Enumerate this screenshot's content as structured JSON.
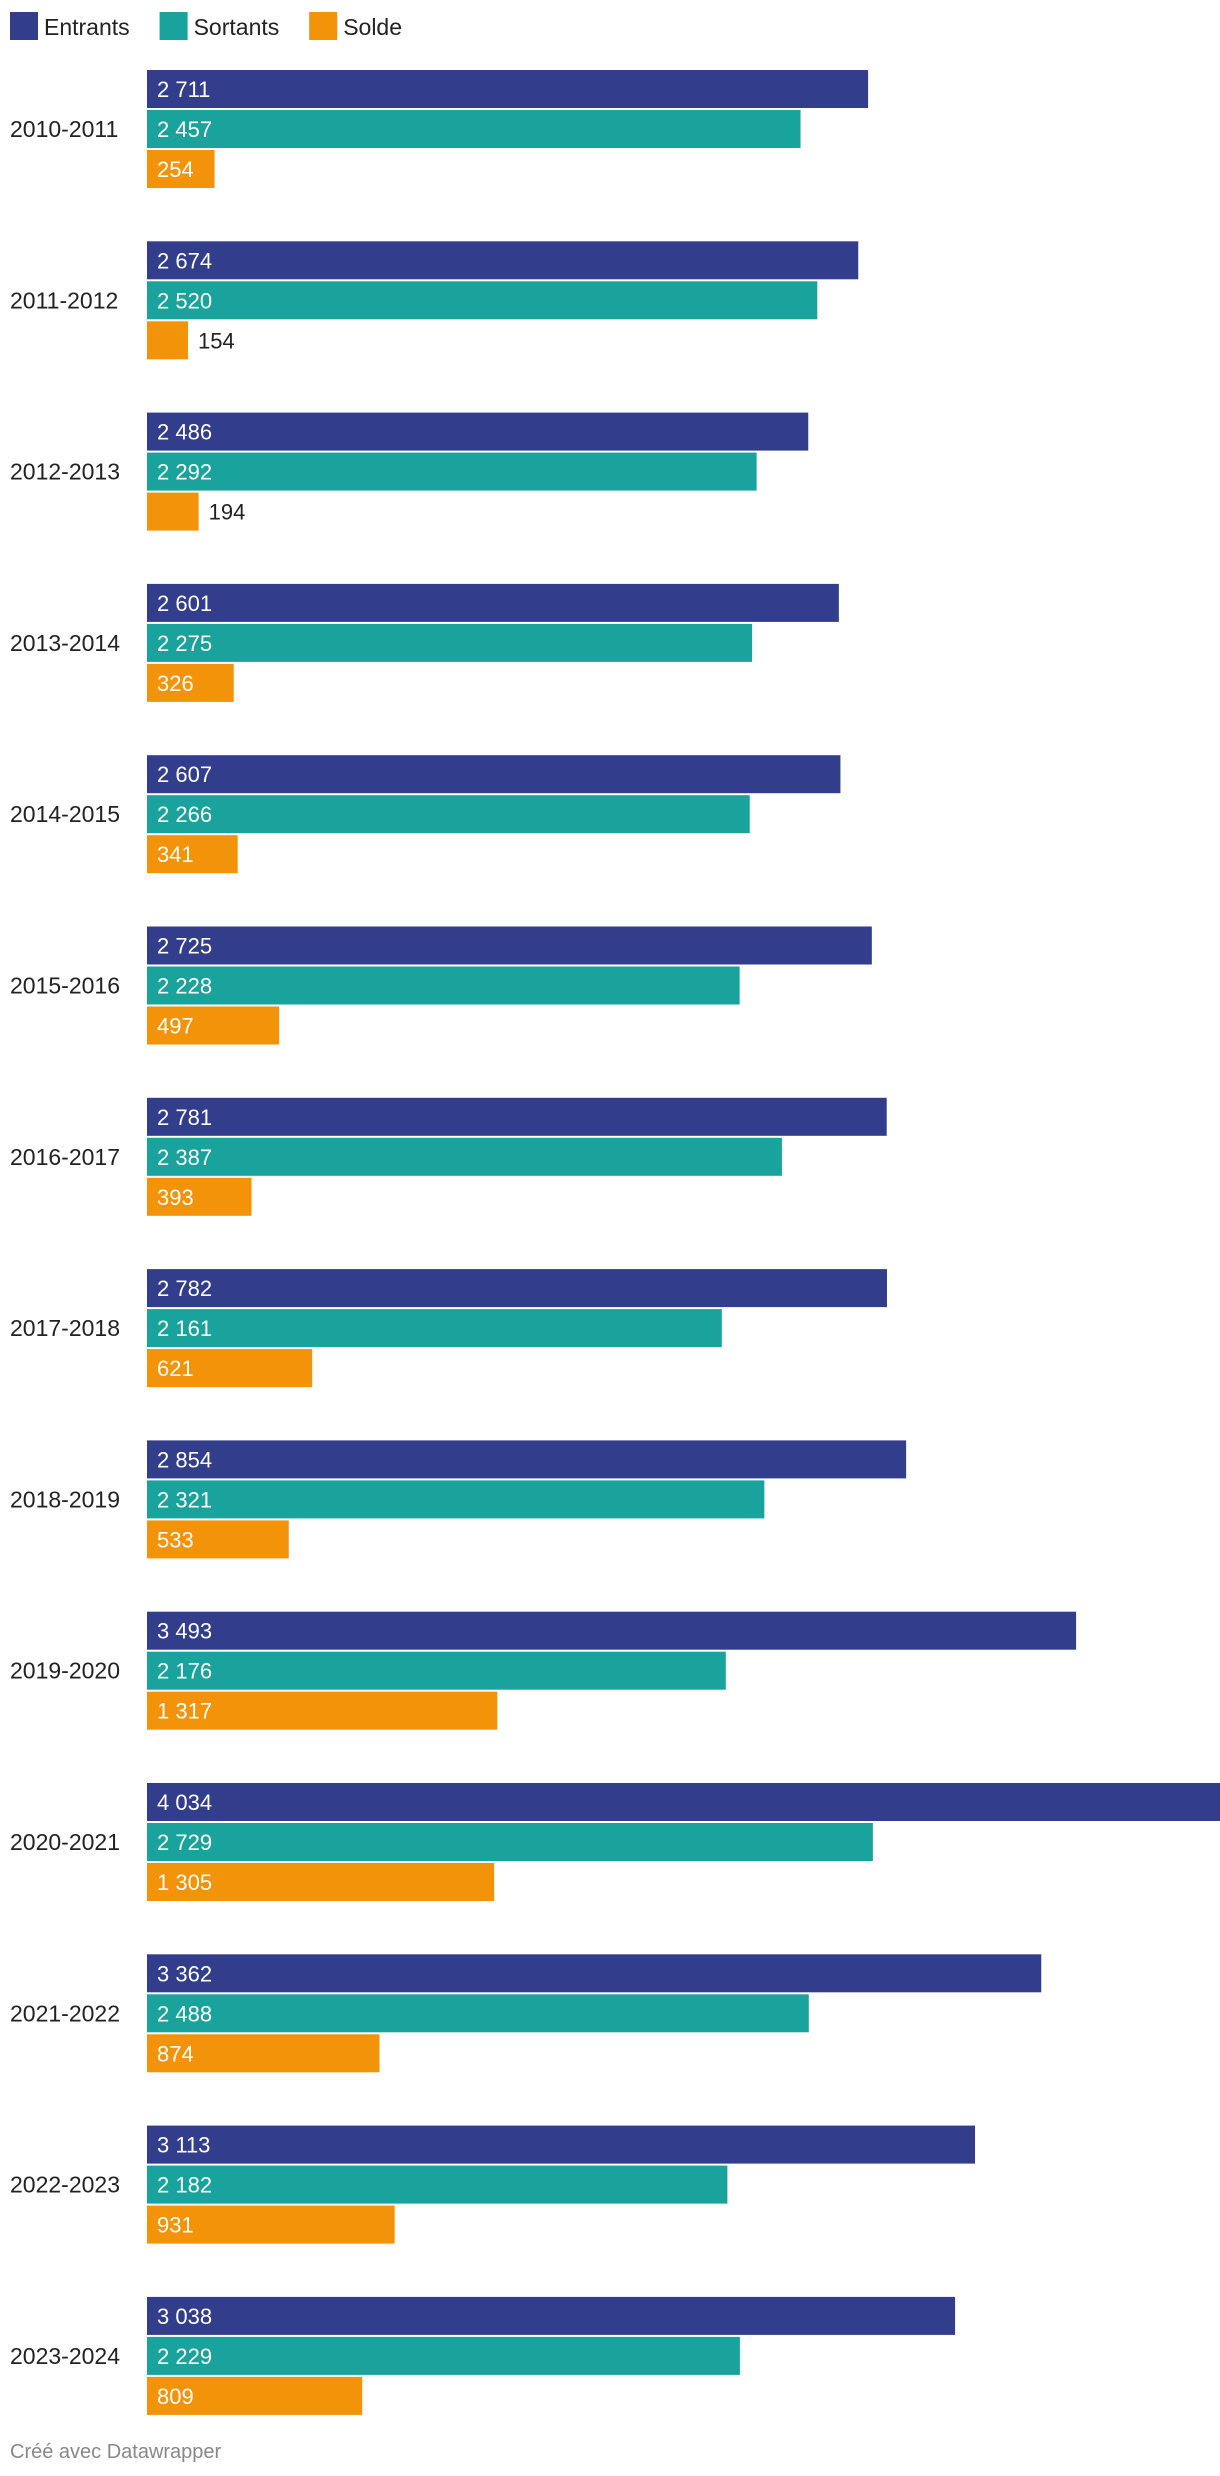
{
  "chart_data": {
    "type": "bar",
    "orientation": "horizontal",
    "legend_placement": "top-left",
    "grid": false,
    "categories": [
      "2010-2011",
      "2011-2012",
      "2012-2013",
      "2013-2014",
      "2014-2015",
      "2015-2016",
      "2016-2017",
      "2017-2018",
      "2018-2019",
      "2019-2020",
      "2020-2021",
      "2021-2022",
      "2022-2023",
      "2023-2024"
    ],
    "series": [
      {
        "name": "Entrants",
        "color": "#323e8c",
        "values": [
          2711,
          2674,
          2486,
          2601,
          2607,
          2725,
          2781,
          2782,
          2854,
          3493,
          4034,
          3362,
          3113,
          3038
        ],
        "labels": [
          "2 711",
          "2 674",
          "2 486",
          "2 601",
          "2 607",
          "2 725",
          "2 781",
          "2 782",
          "2 854",
          "3 493",
          "4 034",
          "3 362",
          "3 113",
          "3 038"
        ]
      },
      {
        "name": "Sortants",
        "color": "#1aa39c",
        "values": [
          2457,
          2520,
          2292,
          2275,
          2266,
          2228,
          2387,
          2161,
          2321,
          2176,
          2729,
          2488,
          2182,
          2229
        ],
        "labels": [
          "2 457",
          "2 520",
          "2 292",
          "2 275",
          "2 266",
          "2 228",
          "2 387",
          "2 161",
          "2 321",
          "2 176",
          "2 729",
          "2 488",
          "2 182",
          "2 229"
        ]
      },
      {
        "name": "Solde",
        "color": "#f2930a",
        "values": [
          254,
          154,
          194,
          326,
          341,
          497,
          393,
          621,
          533,
          1317,
          1305,
          874,
          931,
          809
        ],
        "labels": [
          "254",
          "154",
          "194",
          "326",
          "341",
          "497",
          "393",
          "621",
          "533",
          "1 317",
          "1 305",
          "874",
          "931",
          "809"
        ]
      }
    ],
    "xlim": [
      0,
      4034
    ]
  },
  "footer": {
    "credit": "Créé avec Datawrapper"
  }
}
